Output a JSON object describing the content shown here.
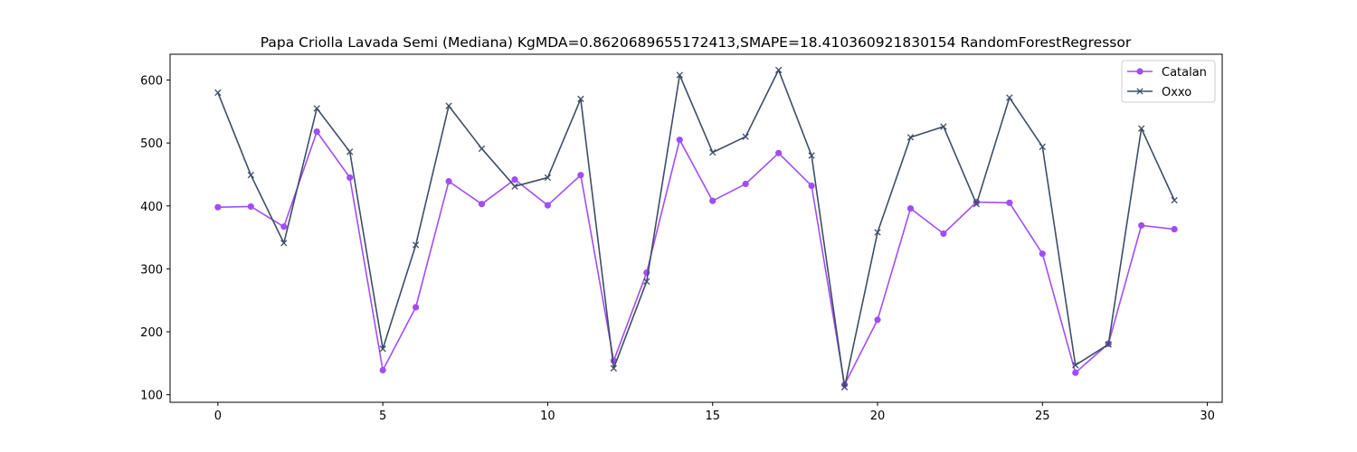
{
  "chart_data": {
    "type": "line",
    "title": "Papa Criolla Lavada Semi (Mediana) KgMDA=0.8620689655172413,SMAPE=18.410360921830154 RandomForestRegressor",
    "xlabel": "",
    "ylabel": "",
    "xlim": [
      -1.45,
      30.45
    ],
    "ylim": [
      88,
      641
    ],
    "x_ticks": [
      0,
      5,
      10,
      15,
      20,
      25,
      30
    ],
    "y_ticks": [
      100,
      200,
      300,
      400,
      500,
      600
    ],
    "grid": false,
    "legend_position": "top-right",
    "x": [
      0,
      1,
      2,
      3,
      4,
      5,
      6,
      7,
      8,
      9,
      10,
      11,
      12,
      13,
      14,
      15,
      16,
      17,
      18,
      19,
      20,
      21,
      22,
      23,
      24,
      25,
      26,
      27,
      28,
      29
    ],
    "series": [
      {
        "name": "Catalan",
        "color": "#a04ef6",
        "marker": "circle",
        "values": [
          398,
          399,
          367,
          518,
          445,
          139,
          239,
          439,
          403,
          442,
          401,
          449,
          154,
          294,
          505,
          408,
          435,
          484,
          432,
          116,
          219,
          396,
          356,
          406,
          405,
          324,
          135,
          181,
          369,
          363
        ]
      },
      {
        "name": "Oxxo",
        "color": "#3e4e68",
        "marker": "x",
        "values": [
          580,
          449,
          341,
          555,
          486,
          173,
          338,
          559,
          491,
          431,
          445,
          570,
          142,
          280,
          608,
          485,
          510,
          616,
          480,
          112,
          358,
          509,
          526,
          403,
          572,
          494,
          147,
          180,
          523,
          409
        ]
      }
    ]
  }
}
